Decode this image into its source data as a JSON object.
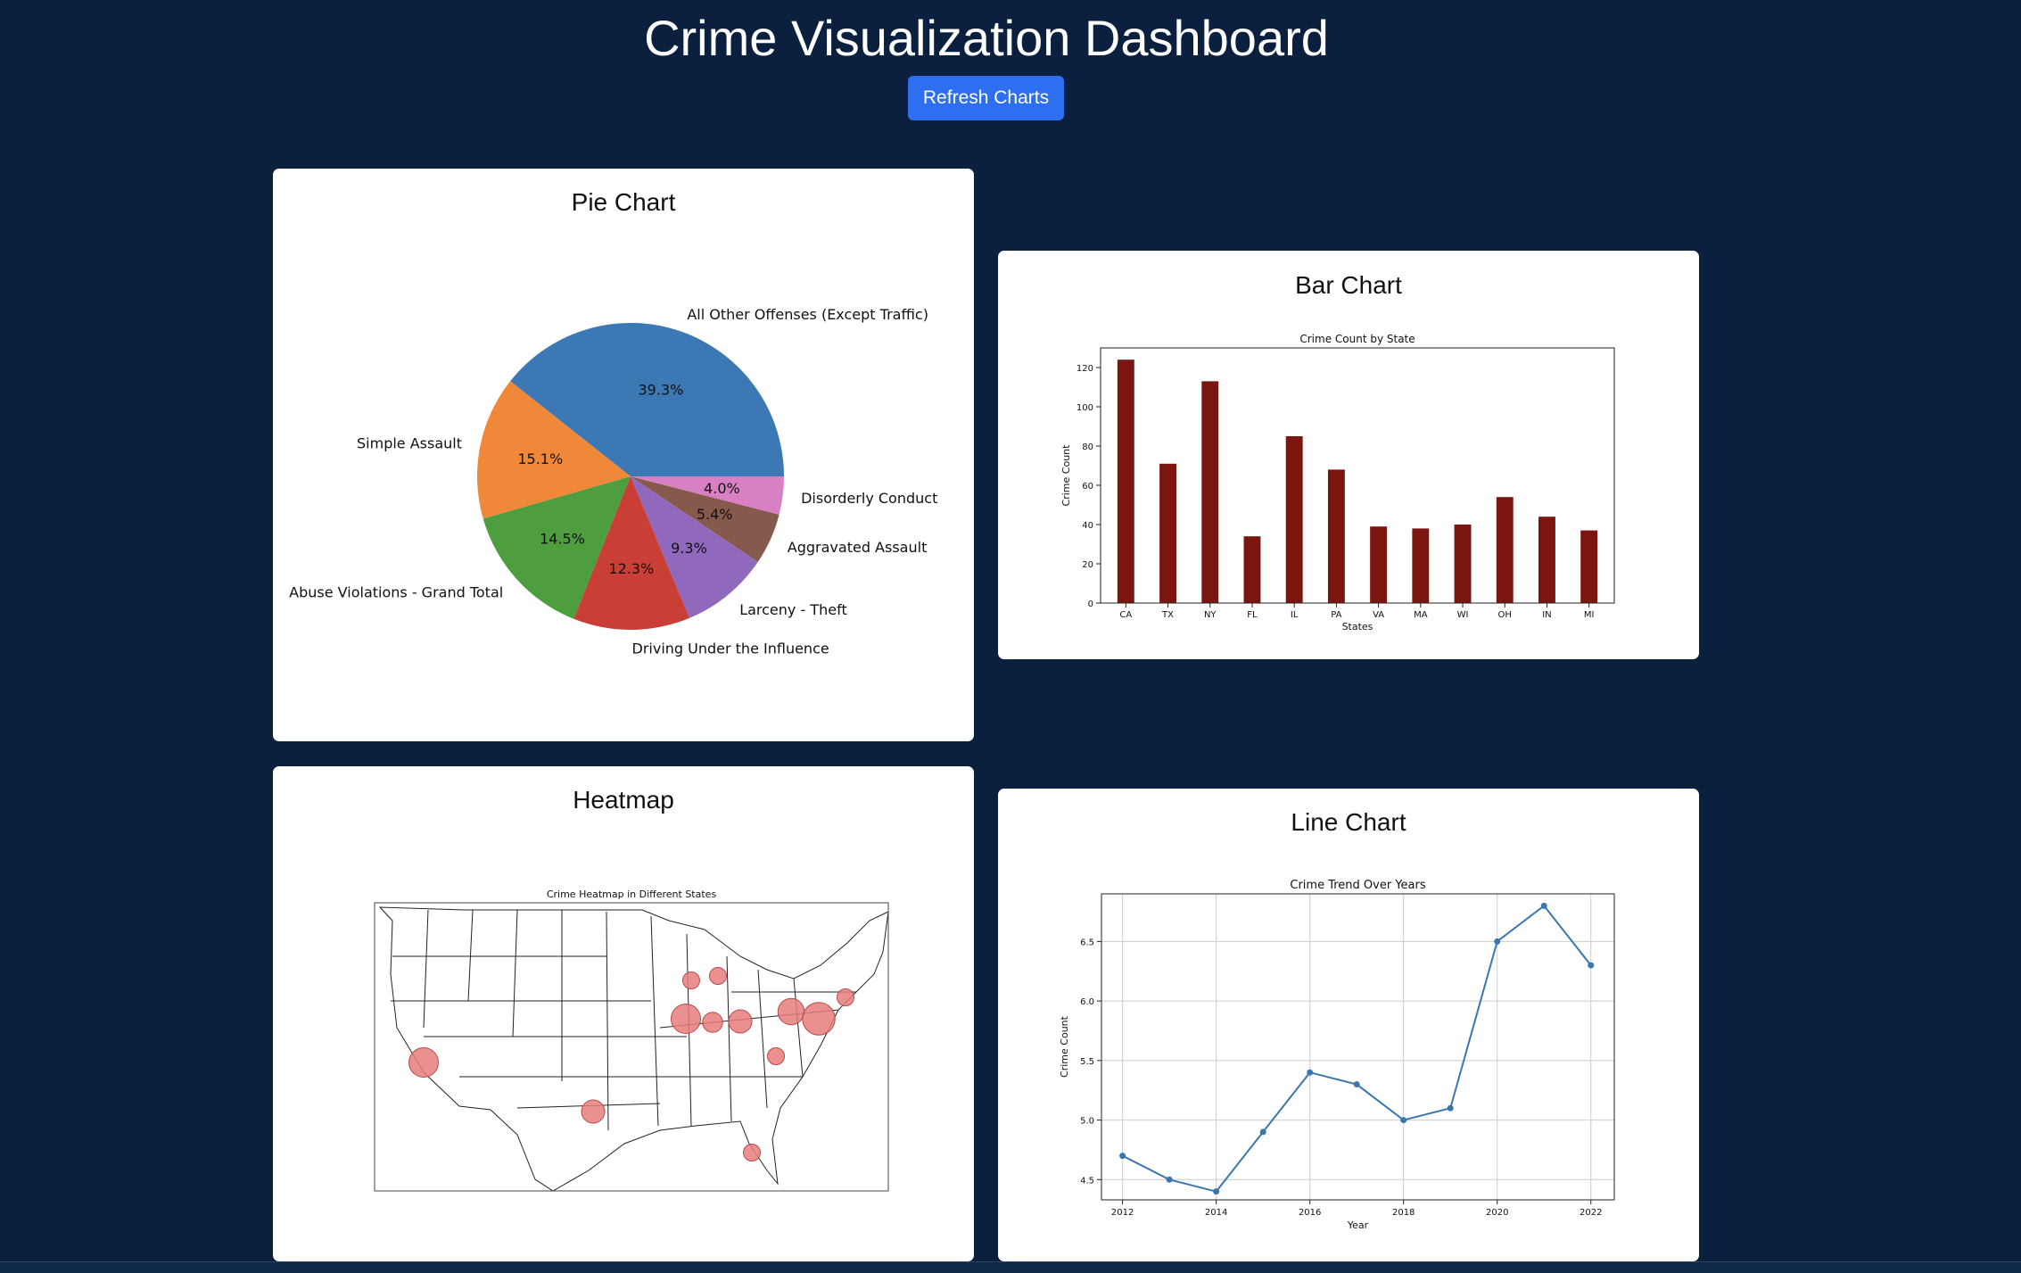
{
  "header": {
    "title": "Crime Visualization Dashboard",
    "refresh_label": "Refresh Charts"
  },
  "cards": {
    "pie": {
      "title": "Pie Chart"
    },
    "bar": {
      "title": "Bar Chart"
    },
    "heatmap": {
      "title": "Heatmap"
    },
    "line": {
      "title": "Line Chart"
    }
  },
  "colors": {
    "background": "#0b1f3f",
    "button": "#2e6ef0",
    "bar": "#7a1510",
    "line": "#3a76b0",
    "bubble": "#e87d7d"
  },
  "chart_data": [
    {
      "type": "pie",
      "title": "",
      "slices": [
        {
          "label": "All Other Offenses (Except Traffic)",
          "value": 39.3,
          "pct_label": "39.3%",
          "color": "#3c78b3"
        },
        {
          "label": "Simple Assault",
          "value": 15.1,
          "pct_label": "15.1%",
          "color": "#f0883a"
        },
        {
          "label": "Abuse Violations - Grand Total",
          "value": 14.5,
          "pct_label": "14.5%",
          "color": "#4e9e3f"
        },
        {
          "label": "Driving Under the Influence",
          "value": 12.3,
          "pct_label": "12.3%",
          "color": "#c93e35"
        },
        {
          "label": "Larceny - Theft",
          "value": 9.3,
          "pct_label": "9.3%",
          "color": "#9069bd"
        },
        {
          "label": "Aggravated Assault",
          "value": 5.4,
          "pct_label": "5.4%",
          "color": "#855a4d"
        },
        {
          "label": "Disorderly Conduct",
          "value": 4.0,
          "pct_label": "4.0%",
          "color": "#d97fc3"
        }
      ]
    },
    {
      "type": "bar",
      "title": "Crime Count by State",
      "xlabel": "States",
      "ylabel": "Crime Count",
      "categories": [
        "CA",
        "TX",
        "NY",
        "FL",
        "IL",
        "PA",
        "VA",
        "MA",
        "WI",
        "OH",
        "IN",
        "MI"
      ],
      "values": [
        124,
        71,
        113,
        34,
        85,
        68,
        39,
        38,
        40,
        54,
        44,
        37
      ],
      "ylim": [
        0,
        130
      ],
      "yticks": [
        0,
        20,
        40,
        60,
        80,
        100,
        120
      ]
    },
    {
      "type": "scatter",
      "title": "Crime Heatmap in Different States",
      "points": [
        {
          "state": "CA",
          "size": 3
        },
        {
          "state": "TX",
          "size": 2
        },
        {
          "state": "FL",
          "size": 1
        },
        {
          "state": "WI",
          "size": 1
        },
        {
          "state": "MI",
          "size": 1
        },
        {
          "state": "IL",
          "size": 3
        },
        {
          "state": "IN",
          "size": 1.5
        },
        {
          "state": "OH",
          "size": 2
        },
        {
          "state": "VA",
          "size": 1
        },
        {
          "state": "PA",
          "size": 2.5
        },
        {
          "state": "NY",
          "size": 3.5
        },
        {
          "state": "MA",
          "size": 1
        }
      ]
    },
    {
      "type": "line",
      "title": "Crime Trend Over Years",
      "xlabel": "Year",
      "ylabel": "Crime Count",
      "x": [
        2012,
        2013,
        2014,
        2015,
        2016,
        2017,
        2018,
        2019,
        2020,
        2021,
        2022
      ],
      "y": [
        4.7,
        4.5,
        4.4,
        4.9,
        5.4,
        5.3,
        5.0,
        5.1,
        6.5,
        6.8,
        6.3
      ],
      "xticks": [
        2012,
        2014,
        2016,
        2018,
        2020,
        2022
      ],
      "yticks": [
        4.5,
        5.0,
        5.5,
        6.0,
        6.5
      ],
      "ylim": [
        4.33,
        6.9
      ],
      "grid": true
    }
  ]
}
